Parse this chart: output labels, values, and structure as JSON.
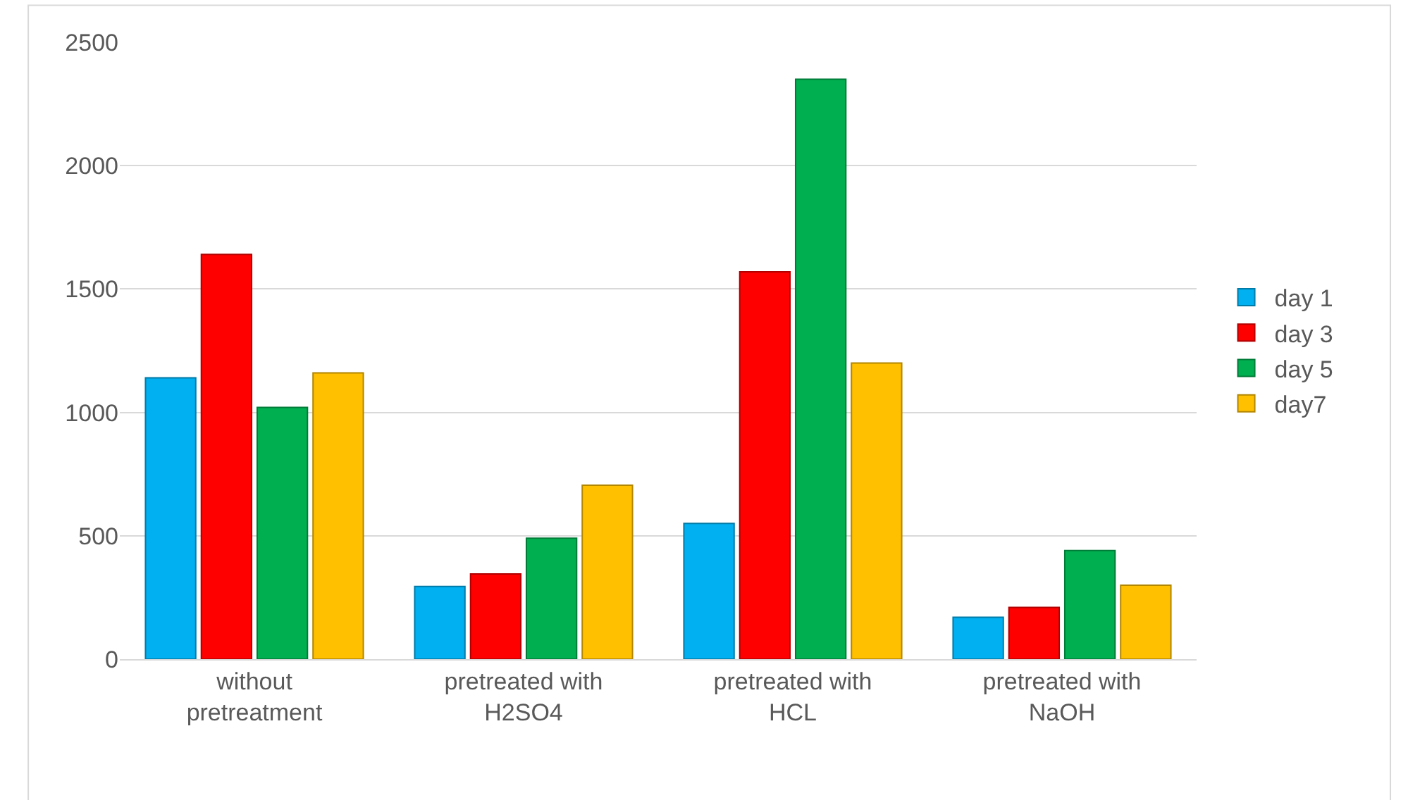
{
  "chart_data": {
    "type": "bar",
    "categories": [
      "without\npretreatment",
      "pretreated with\nH2SO4",
      "pretreated with\nHCL",
      "pretreated with\nNaOH"
    ],
    "series": [
      {
        "name": "day 1",
        "color": "#00b0f0",
        "values": [
          1140,
          295,
          550,
          170
        ]
      },
      {
        "name": "day 3",
        "color": "#ff0000",
        "values": [
          1640,
          345,
          1570,
          210
        ]
      },
      {
        "name": "day 5",
        "color": "#00b050",
        "values": [
          1020,
          490,
          2350,
          440
        ]
      },
      {
        "name": "day7",
        "color": "#ffc000",
        "values": [
          1160,
          705,
          1200,
          300
        ]
      }
    ],
    "ylim": [
      0,
      2500
    ],
    "yticks": [
      0,
      500,
      1000,
      1500,
      2000,
      2500
    ],
    "grid": "y",
    "legend": "right"
  }
}
